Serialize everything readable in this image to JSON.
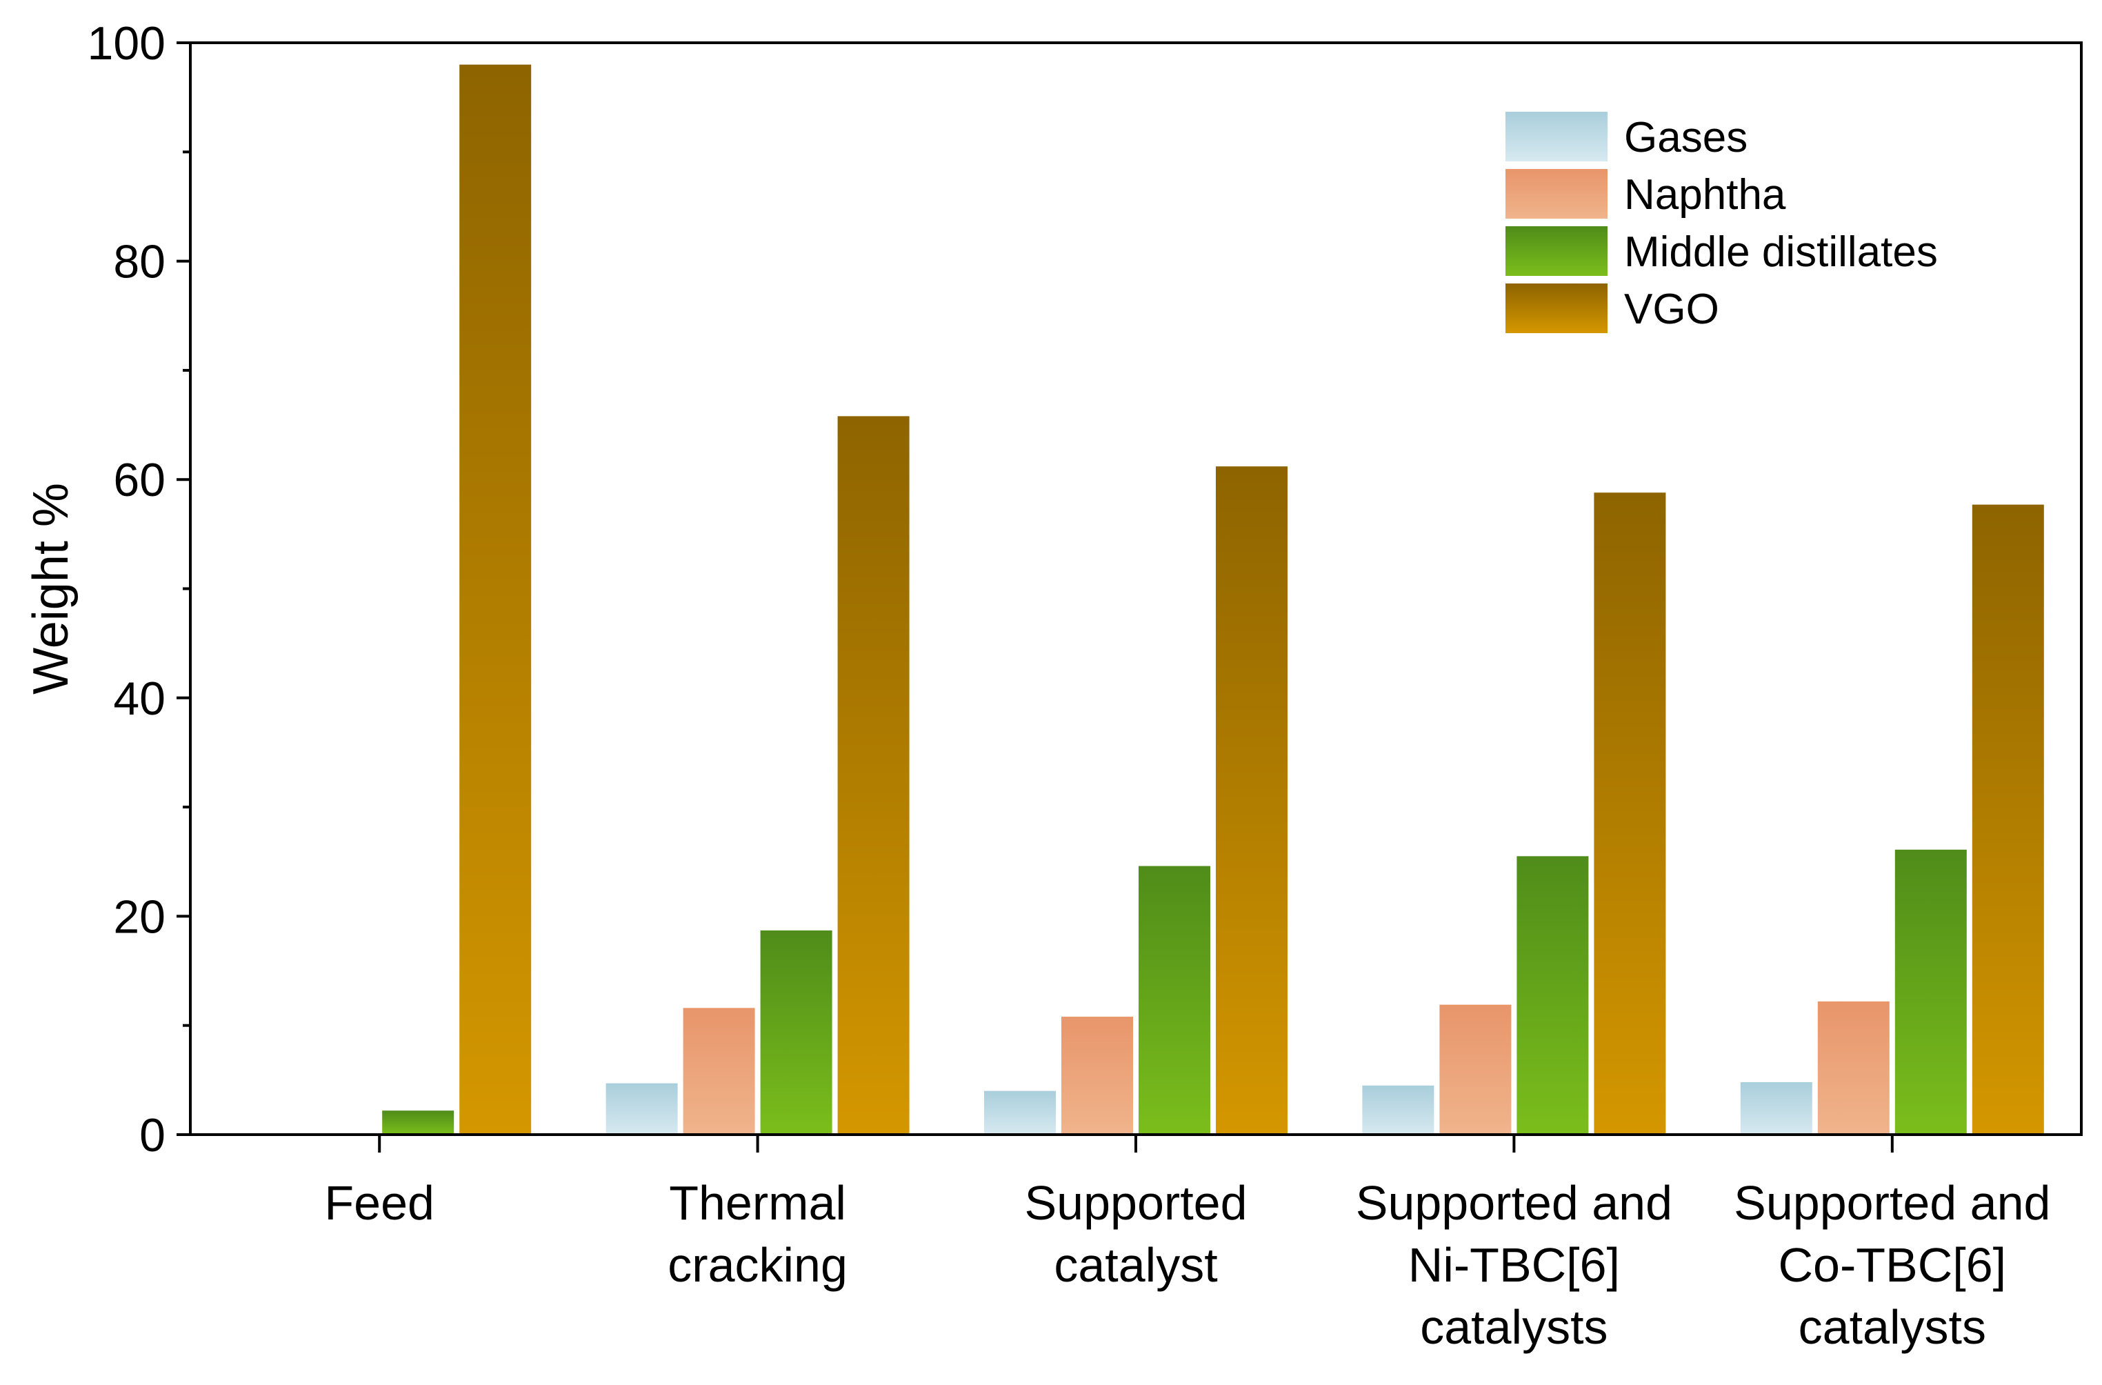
{
  "chart_data": {
    "type": "bar",
    "title": "",
    "xlabel": "",
    "ylabel": "Weight %",
    "ylim": [
      0,
      100
    ],
    "yticks": [
      "0",
      "20",
      "40",
      "60",
      "80",
      "100"
    ],
    "grid": false,
    "legend_position": "top-right",
    "categories": [
      [
        "Feed"
      ],
      [
        "Thermal",
        "cracking"
      ],
      [
        "Supported",
        "catalyst"
      ],
      [
        "Supported and",
        "Ni-TBC[6]",
        "catalysts"
      ],
      [
        "Supported and",
        "Co-TBC[6]",
        "catalysts"
      ]
    ],
    "series": [
      {
        "name": "Gases",
        "values": [
          0,
          4.7,
          4.0,
          4.5,
          4.8
        ],
        "color_top": "#A9CEDB",
        "color_bottom": "#D7E9F0"
      },
      {
        "name": "Naphtha",
        "values": [
          0,
          11.6,
          10.8,
          11.9,
          12.2
        ],
        "color_top": "#E8956A",
        "color_bottom": "#F0B48C"
      },
      {
        "name": "Middle distillates",
        "values": [
          2.2,
          18.7,
          24.6,
          25.5,
          26.1
        ],
        "color_top": "#4F8C1A",
        "color_bottom": "#7BBE1B"
      },
      {
        "name": "VGO",
        "values": [
          98.0,
          65.8,
          61.2,
          58.8,
          57.7
        ],
        "color_top": "#8E6400",
        "color_bottom": "#D49700"
      }
    ]
  }
}
